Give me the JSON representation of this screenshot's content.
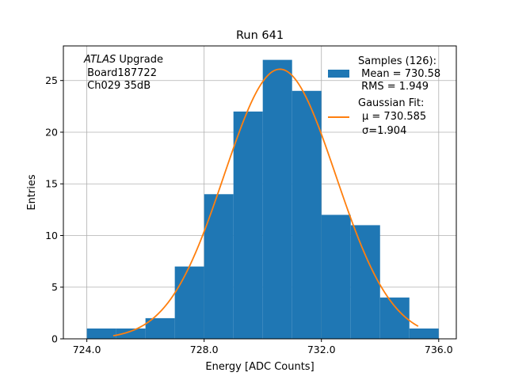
{
  "chart_data": {
    "type": "bar",
    "title": "Run 641",
    "xlabel": "Energy [ADC Counts]",
    "ylabel": "Entries",
    "xlim": [
      723.2,
      736.6
    ],
    "ylim": [
      0,
      28.35
    ],
    "xticks": [
      "724.0",
      "728.0",
      "732.0",
      "736.0"
    ],
    "xtick_values": [
      724,
      728,
      732,
      736
    ],
    "yticks": [
      "0",
      "5",
      "10",
      "15",
      "20",
      "25"
    ],
    "ytick_values": [
      0,
      5,
      10,
      15,
      20,
      25
    ],
    "grid": true,
    "bins": {
      "edges": [
        724,
        725,
        726,
        727,
        728,
        729,
        730,
        731,
        732,
        733,
        734,
        735,
        736
      ],
      "counts": [
        1,
        1,
        2,
        7,
        14,
        22,
        27,
        24,
        12,
        11,
        4,
        1
      ]
    },
    "fit": {
      "type": "gaussian",
      "mu": 730.585,
      "sigma": 1.904,
      "amplitude": 26.1,
      "x_range": [
        724.9,
        735.3
      ]
    },
    "colors": {
      "hist": "#1f77b4",
      "fit": "#ff7f0e",
      "grid": "#b0b0b0"
    },
    "annotation": {
      "italic": "ATLAS",
      "line1_rest": " Upgrade",
      "line2": " Board187722",
      "line3": " Ch029 35dB"
    },
    "legend": {
      "placement": "top-right",
      "hist_lines": [
        "Samples (126):",
        " Mean = 730.58",
        " RMS = 1.949"
      ],
      "fit_lines": [
        "Gaussian Fit:",
        "μ = 730.585",
        "σ=1.904"
      ]
    }
  }
}
